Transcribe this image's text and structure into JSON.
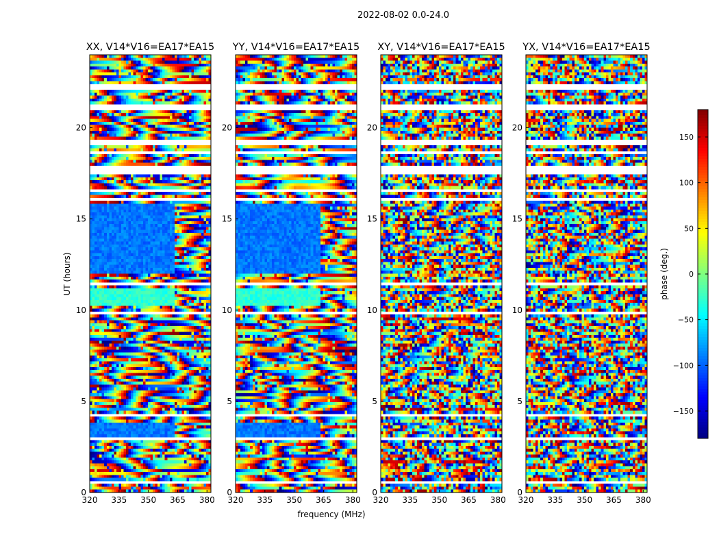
{
  "figure": {
    "suptitle": "2022-08-02 0.0-24.0"
  },
  "colormap": "jet",
  "chart_data": {
    "type": "heatmap",
    "shared_x_label": "frequency (MHz)",
    "shared_y_label": "UT (hours)",
    "xlim": [
      320,
      382
    ],
    "ylim": [
      0,
      24
    ],
    "x_ticks": [
      "320",
      "335",
      "350",
      "365",
      "380"
    ],
    "y_ticks": [
      "0",
      "5",
      "10",
      "15",
      "20"
    ],
    "panels": [
      {
        "title": "XX, V14*V16=EA17*EA15",
        "style": "smooth"
      },
      {
        "title": "YY, V14*V16=EA17*EA15",
        "style": "smooth"
      },
      {
        "title": "XY, V14*V16=EA17*EA15",
        "style": "noisy"
      },
      {
        "title": "YX, V14*V16=EA17*EA15",
        "style": "noisy"
      }
    ],
    "colorbar": {
      "label": "phase (deg.)",
      "range": [
        -180,
        180
      ],
      "ticks": [
        "−150",
        "−100",
        "−50",
        "0",
        "50",
        "100",
        "150"
      ]
    }
  }
}
